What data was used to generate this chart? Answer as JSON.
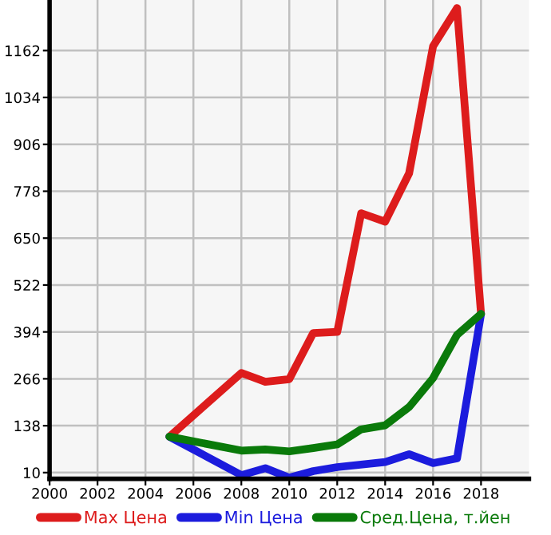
{
  "chart_data": {
    "type": "line",
    "x": [
      2005,
      2008,
      2009,
      2010,
      2011,
      2012,
      2013,
      2014,
      2015,
      2016,
      2017,
      2018
    ],
    "series": [
      {
        "name": "Max Цена",
        "color": "#dd1c1c",
        "values": [
          108,
          282,
          258,
          265,
          391,
          394,
          718,
          695,
          827,
          1174,
          1278,
          443
        ]
      },
      {
        "name": "Min Цена",
        "color": "#1c1cdd",
        "x": [
          2005,
          2008,
          2009,
          2010,
          2011,
          2012,
          2014,
          2015,
          2016,
          2017,
          2018
        ],
        "values": [
          108,
          3,
          22,
          -4,
          14,
          25,
          39,
          60,
          36,
          49,
          443
        ]
      },
      {
        "name": "Сред.Цена, т.йен",
        "color": "#0a7a0a",
        "values": [
          108,
          70,
          73,
          68,
          77,
          87,
          128,
          139,
          189,
          268,
          386,
          443
        ]
      }
    ],
    "xlim": [
      2000,
      2020
    ],
    "xticks": [
      2000,
      2002,
      2004,
      2006,
      2008,
      2010,
      2012,
      2014,
      2016,
      2018
    ],
    "ylim": [
      -7,
      1300
    ],
    "yticks": [
      10,
      138,
      266,
      394,
      522,
      650,
      778,
      906,
      1034,
      1162
    ],
    "grid": true,
    "legend": "bottom",
    "marker": "none",
    "line_style": "solid"
  }
}
